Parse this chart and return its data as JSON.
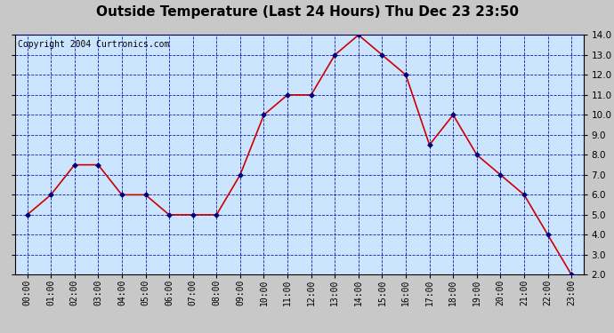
{
  "title": "Outside Temperature (Last 24 Hours) Thu Dec 23 23:50",
  "copyright": "Copyright 2004 Curtronics.com",
  "x_labels": [
    "00:00",
    "01:00",
    "02:00",
    "03:00",
    "04:00",
    "05:00",
    "06:00",
    "07:00",
    "08:00",
    "09:00",
    "10:00",
    "11:00",
    "12:00",
    "13:00",
    "14:00",
    "15:00",
    "16:00",
    "17:00",
    "18:00",
    "19:00",
    "20:00",
    "21:00",
    "22:00",
    "23:00"
  ],
  "y_values": [
    5.0,
    6.0,
    7.5,
    7.5,
    6.0,
    6.0,
    5.0,
    5.0,
    5.0,
    7.0,
    10.0,
    11.0,
    11.0,
    13.0,
    14.0,
    13.0,
    12.0,
    8.5,
    10.0,
    8.0,
    7.0,
    6.0,
    4.0,
    2.0
  ],
  "ylim_min": 2.0,
  "ylim_max": 14.0,
  "ytick_step": 1.0,
  "line_color": "#cc0000",
  "marker_color": "#000080",
  "bg_color": "#cce5ff",
  "outer_bg_color": "#c8c8c8",
  "grid_color": "#0000bb",
  "title_fontsize": 11,
  "copyright_fontsize": 7
}
